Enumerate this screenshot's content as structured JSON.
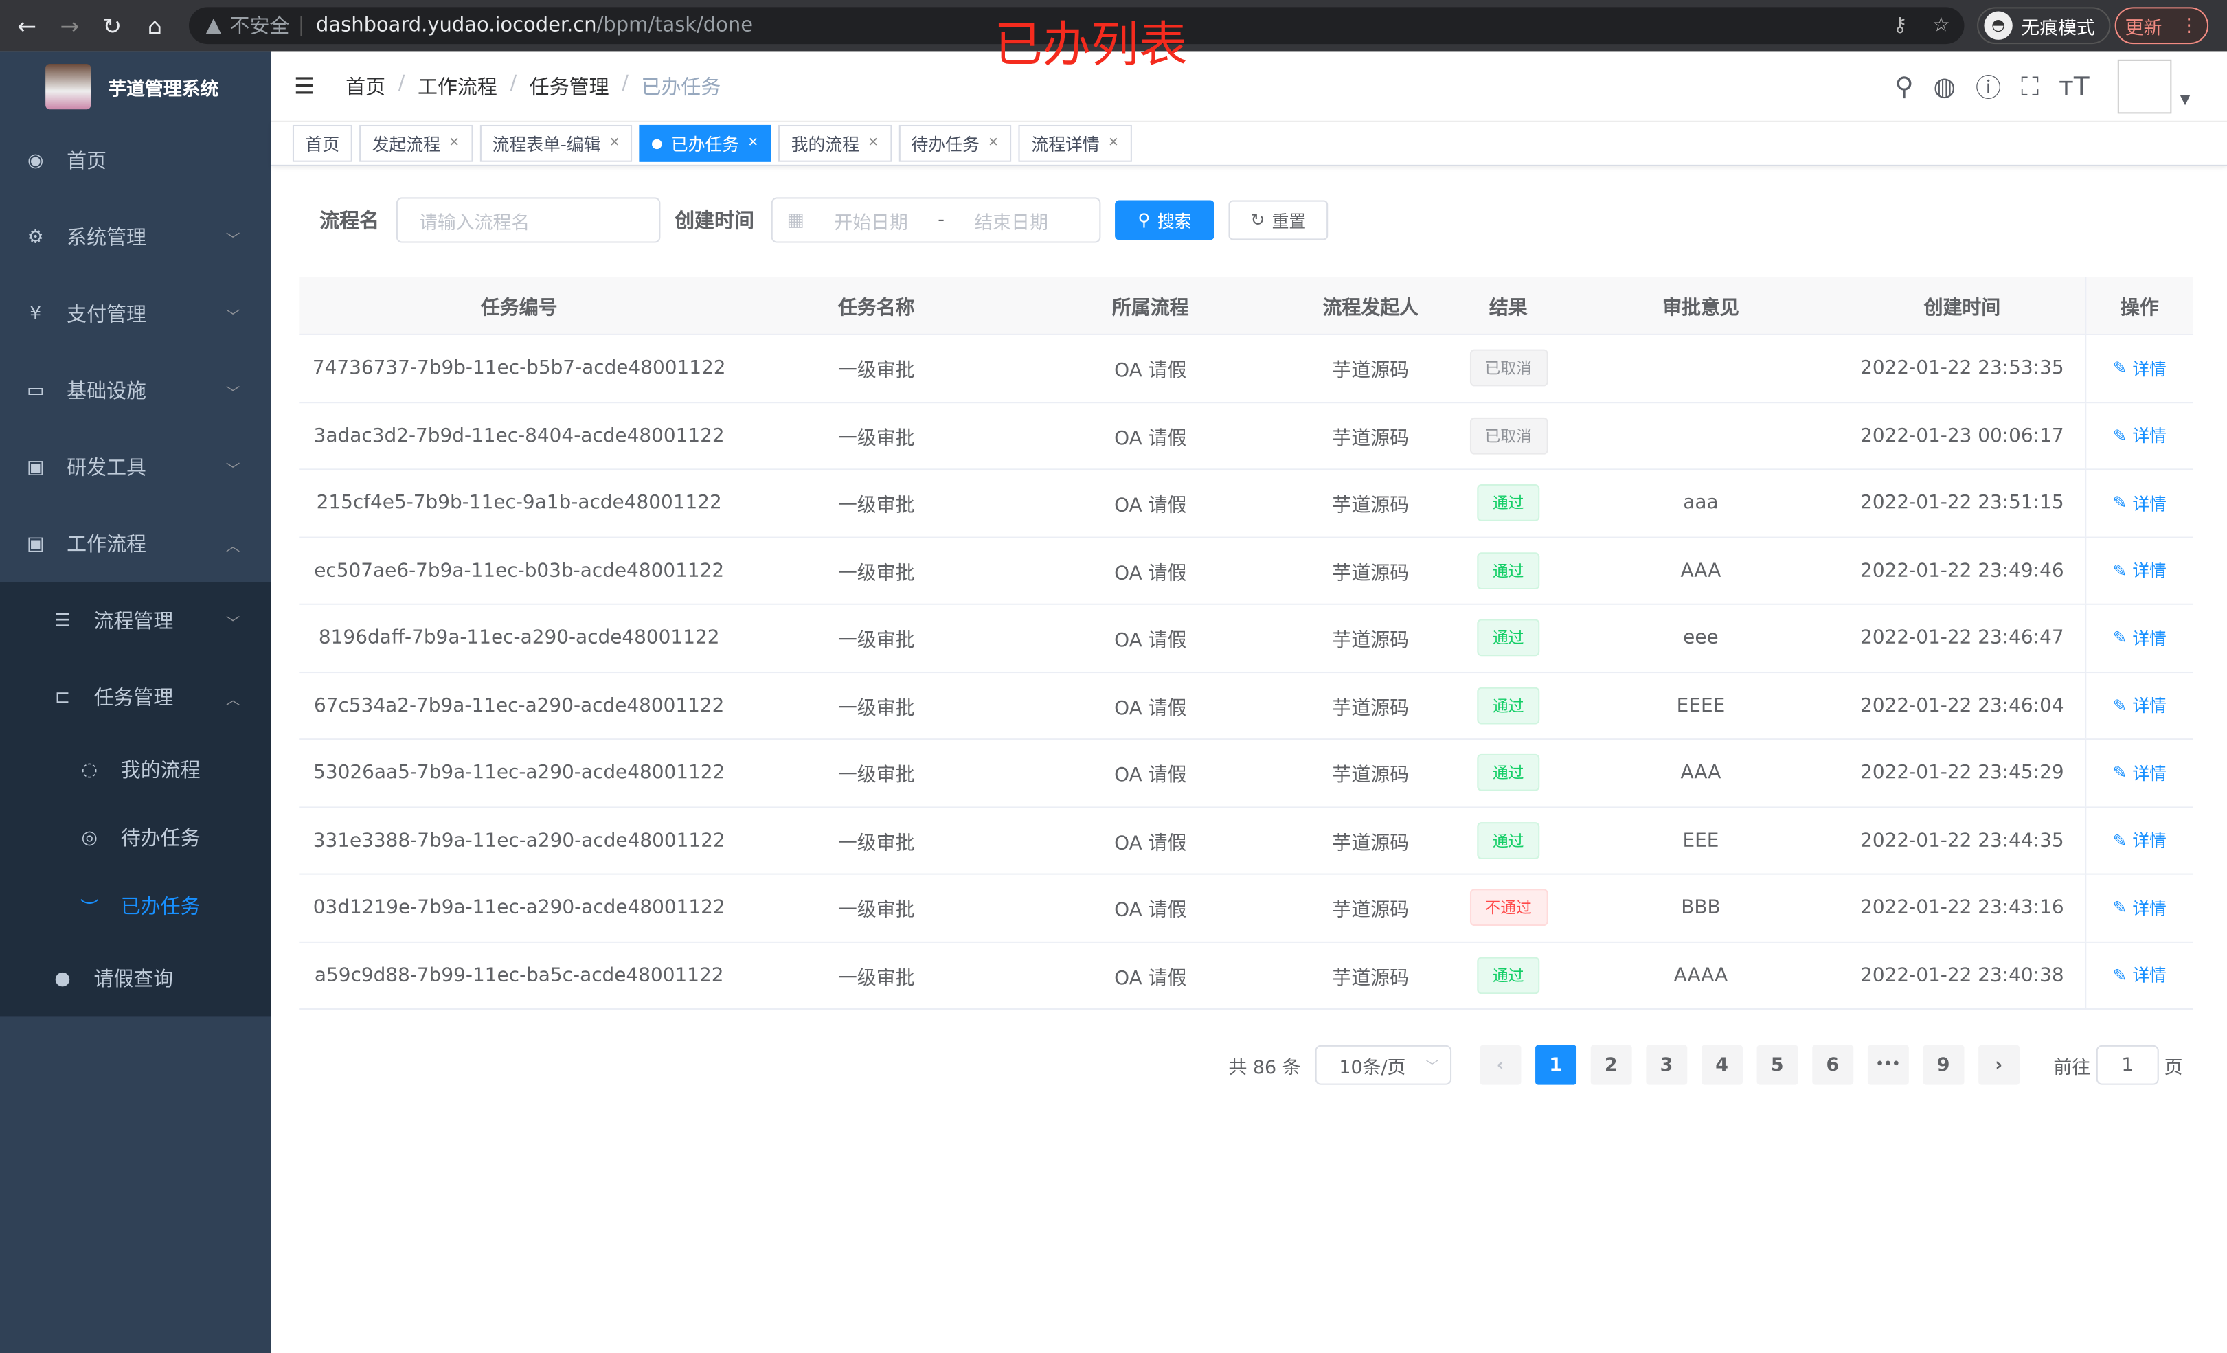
{
  "browser": {
    "back": "←",
    "forward": "→",
    "reload": "↻",
    "home": "⌂",
    "security": "不安全",
    "url_host": "dashboard.yudao.iocoder.cn",
    "url_path": "/bpm/task/done",
    "incognito": "无痕模式",
    "update": "更新",
    "menu": "⋮"
  },
  "annotation": "已办列表",
  "app": {
    "title": "芋道管理系统"
  },
  "sidebar": {
    "items": [
      {
        "label": "首页",
        "icon": "dashboard-icon"
      },
      {
        "label": "系统管理",
        "icon": "gear-icon"
      },
      {
        "label": "支付管理",
        "icon": "yen-icon"
      },
      {
        "label": "基础设施",
        "icon": "monitor-icon"
      },
      {
        "label": "研发工具",
        "icon": "toolbox-icon"
      },
      {
        "label": "工作流程",
        "icon": "toolbox-icon"
      },
      {
        "label": "流程管理",
        "icon": "list-icon"
      },
      {
        "label": "任务管理",
        "icon": "tree-icon"
      },
      {
        "label": "我的流程",
        "icon": "chat-icon"
      },
      {
        "label": "待办任务",
        "icon": "eye-icon"
      },
      {
        "label": "已办任务",
        "icon": "done-icon"
      },
      {
        "label": "请假查询",
        "icon": "user-icon"
      }
    ]
  },
  "breadcrumb": [
    "首页",
    "工作流程",
    "任务管理",
    "已办任务"
  ],
  "tags": [
    "首页",
    "发起流程",
    "流程表单-编辑",
    "已办任务",
    "我的流程",
    "待办任务",
    "流程详情"
  ],
  "filter": {
    "name_label": "流程名",
    "name_placeholder": "请输入流程名",
    "time_label": "创建时间",
    "start_placeholder": "开始日期",
    "sep": "-",
    "end_placeholder": "结束日期",
    "search": "搜索",
    "reset": "重置"
  },
  "table": {
    "headers": [
      "任务编号",
      "任务名称",
      "所属流程",
      "流程发起人",
      "结果",
      "审批意见",
      "创建时间",
      "操作"
    ],
    "action_label": "详情",
    "rows": [
      {
        "id": "74736737-7b9b-11ec-b5b7-acde48001122",
        "name": "一级审批",
        "process": "OA 请假",
        "starter": "芋道源码",
        "result": "已取消",
        "status": "cancel",
        "comment": "",
        "time": "2022-01-22 23:53:35"
      },
      {
        "id": "3adac3d2-7b9d-11ec-8404-acde48001122",
        "name": "一级审批",
        "process": "OA 请假",
        "starter": "芋道源码",
        "result": "已取消",
        "status": "cancel",
        "comment": "",
        "time": "2022-01-23 00:06:17"
      },
      {
        "id": "215cf4e5-7b9b-11ec-9a1b-acde48001122",
        "name": "一级审批",
        "process": "OA 请假",
        "starter": "芋道源码",
        "result": "通过",
        "status": "pass",
        "comment": "aaa",
        "time": "2022-01-22 23:51:15"
      },
      {
        "id": "ec507ae6-7b9a-11ec-b03b-acde48001122",
        "name": "一级审批",
        "process": "OA 请假",
        "starter": "芋道源码",
        "result": "通过",
        "status": "pass",
        "comment": "AAA",
        "time": "2022-01-22 23:49:46"
      },
      {
        "id": "8196daff-7b9a-11ec-a290-acde48001122",
        "name": "一级审批",
        "process": "OA 请假",
        "starter": "芋道源码",
        "result": "通过",
        "status": "pass",
        "comment": "eee",
        "time": "2022-01-22 23:46:47"
      },
      {
        "id": "67c534a2-7b9a-11ec-a290-acde48001122",
        "name": "一级审批",
        "process": "OA 请假",
        "starter": "芋道源码",
        "result": "通过",
        "status": "pass",
        "comment": "EEEE",
        "time": "2022-01-22 23:46:04"
      },
      {
        "id": "53026aa5-7b9a-11ec-a290-acde48001122",
        "name": "一级审批",
        "process": "OA 请假",
        "starter": "芋道源码",
        "result": "通过",
        "status": "pass",
        "comment": "AAA",
        "time": "2022-01-22 23:45:29"
      },
      {
        "id": "331e3388-7b9a-11ec-a290-acde48001122",
        "name": "一级审批",
        "process": "OA 请假",
        "starter": "芋道源码",
        "result": "通过",
        "status": "pass",
        "comment": "EEE",
        "time": "2022-01-22 23:44:35"
      },
      {
        "id": "03d1219e-7b9a-11ec-a290-acde48001122",
        "name": "一级审批",
        "process": "OA 请假",
        "starter": "芋道源码",
        "result": "不通过",
        "status": "reject",
        "comment": "BBB",
        "time": "2022-01-22 23:43:16"
      },
      {
        "id": "a59c9d88-7b99-11ec-ba5c-acde48001122",
        "name": "一级审批",
        "process": "OA 请假",
        "starter": "芋道源码",
        "result": "通过",
        "status": "pass",
        "comment": "AAAA",
        "time": "2022-01-22 23:40:38"
      }
    ]
  },
  "pagination": {
    "total": "共 86 条",
    "page_size": "10条/页",
    "pages": [
      "1",
      "2",
      "3",
      "4",
      "5",
      "6",
      "•••",
      "9"
    ],
    "current": "1",
    "goto_label": "前往",
    "goto_value": "1",
    "goto_suffix": "页"
  },
  "colors": {
    "primary": "#1890ff",
    "sidebar": "#304156",
    "pass": "#13ce66",
    "reject": "#ff4949",
    "cancel": "#909399"
  }
}
